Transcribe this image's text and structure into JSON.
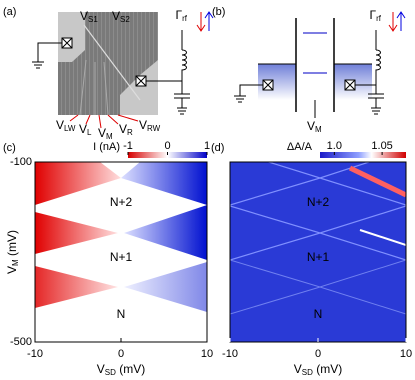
{
  "panels": [
    {
      "label": "(a)",
      "gate_labels_top": [
        {
          "base": "V",
          "sub": "S1"
        },
        {
          "base": "V",
          "sub": "S2"
        }
      ],
      "gate_labels_bottom": [
        {
          "base": "V",
          "sub": "LW"
        },
        {
          "base": "V",
          "sub": "L"
        },
        {
          "base": "V",
          "sub": "M"
        },
        {
          "base": "V",
          "sub": "R"
        },
        {
          "base": "V",
          "sub": "RW"
        }
      ],
      "rf_label": {
        "base": "Γ",
        "sub": "rf"
      }
    },
    {
      "label": "(b)",
      "gate_label": {
        "base": "V",
        "sub": "M"
      },
      "rf_label": {
        "base": "Γ",
        "sub": "rf"
      }
    },
    {
      "label": "(c)",
      "colorbar": {
        "label": "I (nA)",
        "lim": [
          -1,
          1
        ],
        "ticks": [
          -1,
          0,
          1
        ]
      },
      "xlabel": {
        "base": "V",
        "sub": "SD",
        "unit": " (mV)"
      },
      "ylabel": {
        "base": "V",
        "sub": "M",
        "unit": " (mV)"
      },
      "xlim": [
        -10,
        10
      ],
      "xticks": [
        -10,
        0,
        10
      ],
      "ylim": [
        -500,
        -100
      ],
      "yticks": [
        -500,
        -100
      ],
      "state_labels": [
        "N+2",
        "N+1",
        "N"
      ]
    },
    {
      "label": "(d)",
      "colorbar": {
        "label": "ΔA/A",
        "lim": [
          0.985,
          1.075
        ],
        "ticks": [
          {
            "value": 1,
            "label": "1.0"
          },
          1.05
        ]
      },
      "xlabel": {
        "base": "V",
        "sub": "SD",
        "unit": " (mV)"
      },
      "xlim": [
        -10,
        10
      ],
      "xticks": [
        -10,
        0,
        10
      ],
      "state_labels": [
        "N+2",
        "N+1",
        "N"
      ]
    }
  ]
}
